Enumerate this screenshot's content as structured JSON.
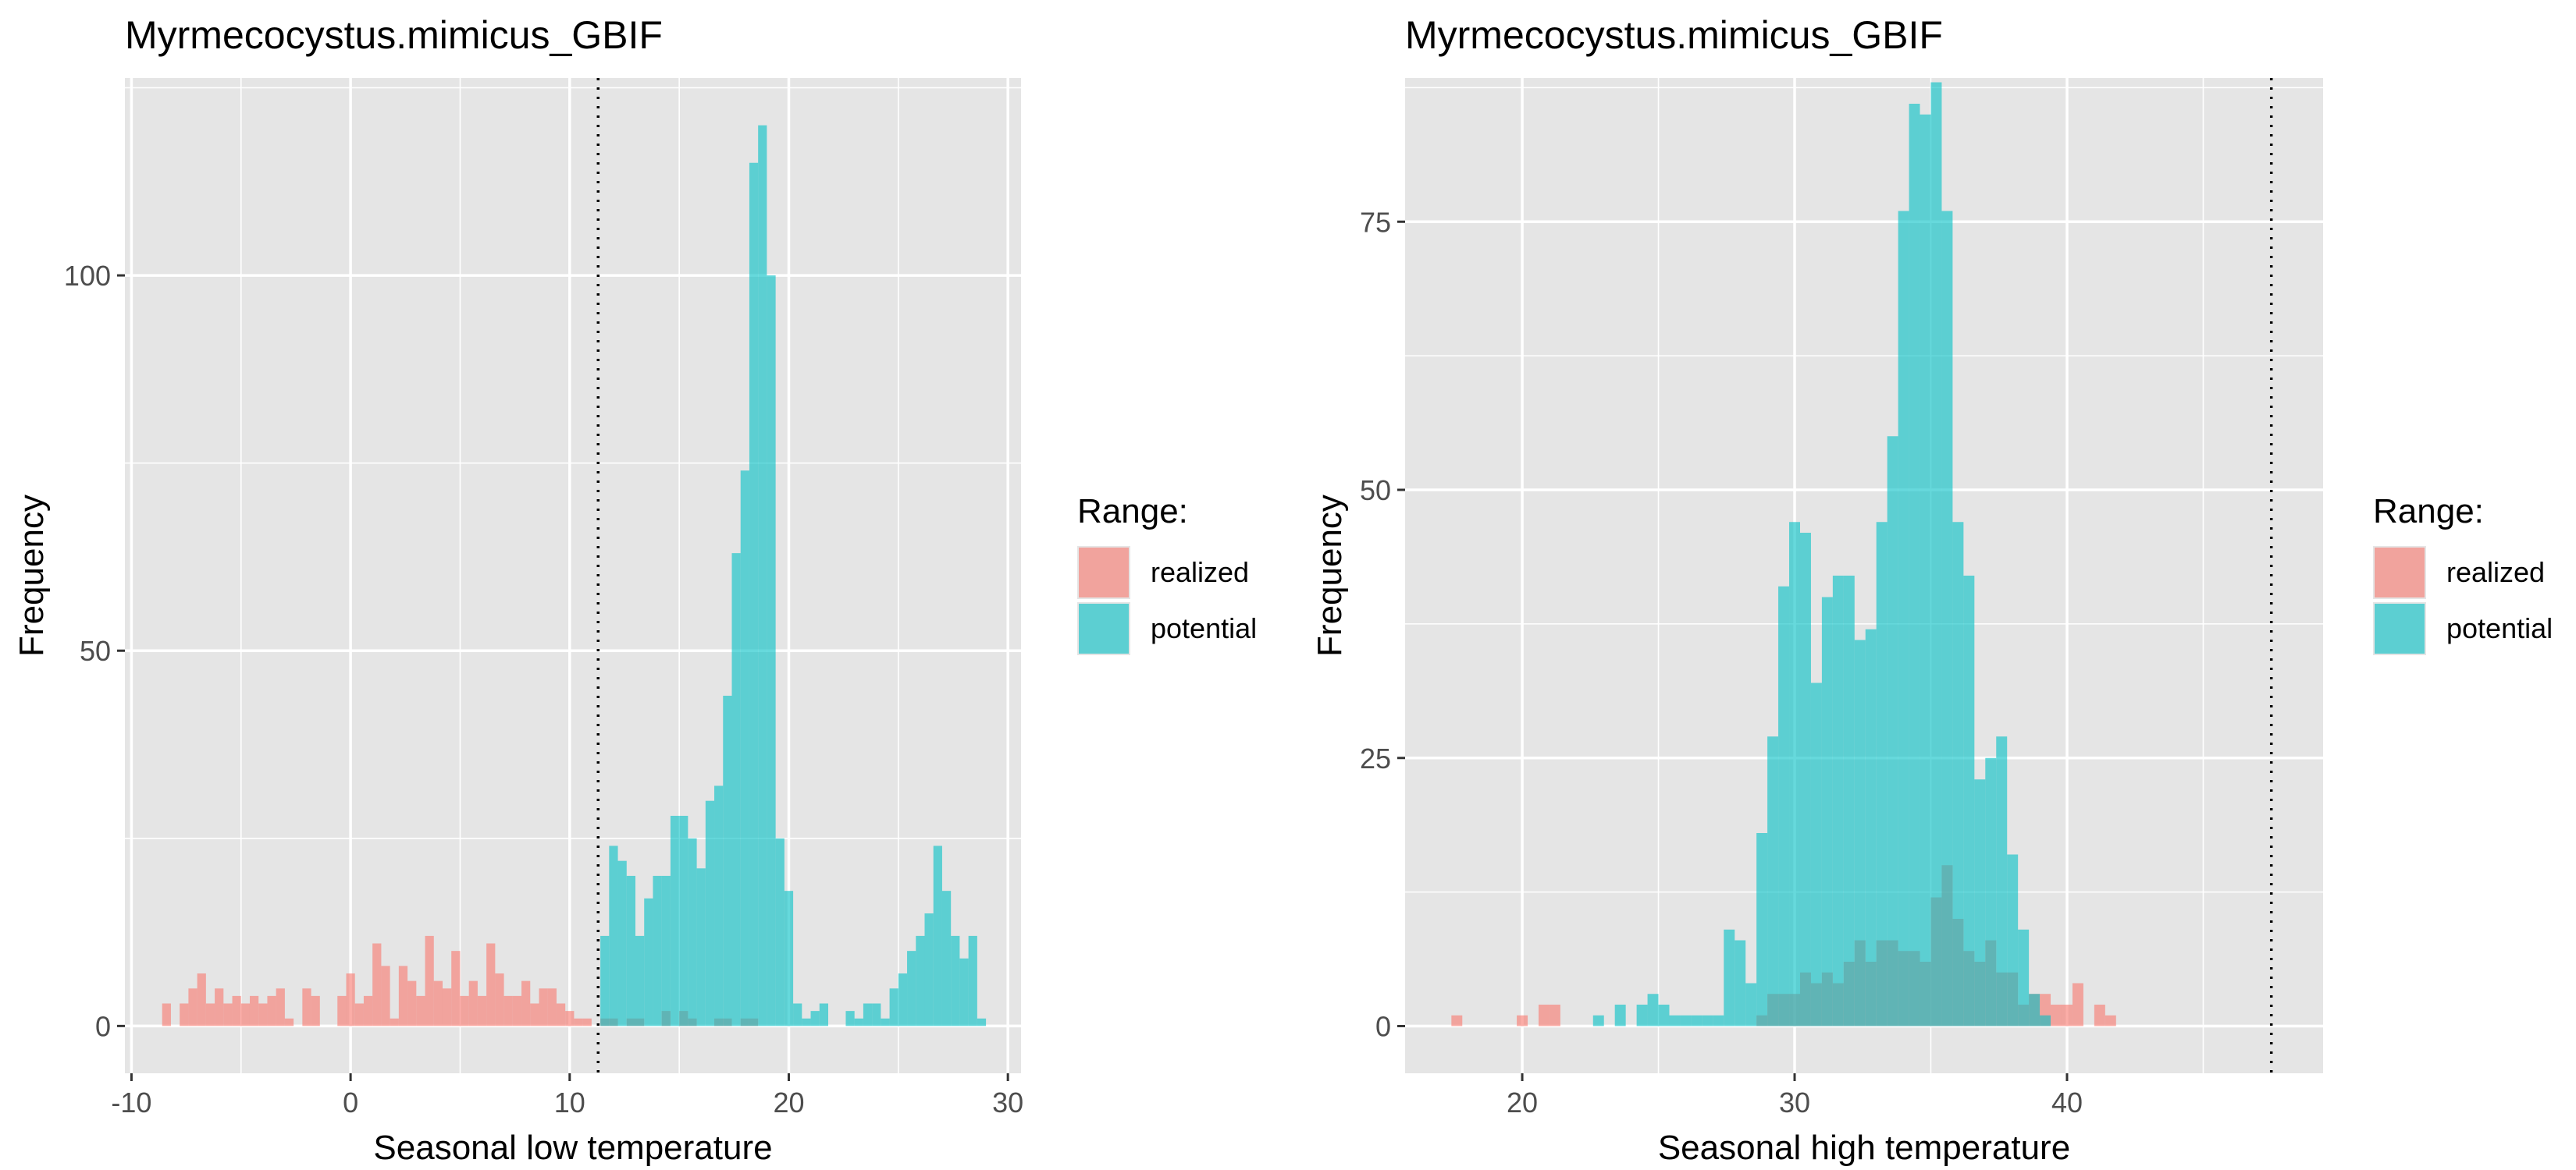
{
  "colors": {
    "realized": "#F8766D",
    "potential": "#00BFC4",
    "panel_bg": "#E5E5E5",
    "grid": "#FFFFFF",
    "text": "#000000",
    "tick_text": "#4D4D4D"
  },
  "chart_data": [
    {
      "type": "histogram",
      "title": "Myrmecocystus.mimicus_GBIF",
      "xlabel": "Seasonal low temperature",
      "ylabel": "Frequency",
      "xlim": [
        -10.3,
        30.6
      ],
      "ylim": [
        -6.3,
        126.3
      ],
      "x_ticks": [
        -10,
        0,
        10,
        20,
        30
      ],
      "x_tick_labels": [
        "-10",
        "0",
        "10",
        "20",
        "30"
      ],
      "y_ticks": [
        0,
        50,
        100
      ],
      "y_tick_labels": [
        "0",
        "50",
        "100"
      ],
      "threshold_x": 11.3,
      "legend": {
        "title": "Range:",
        "position": "right",
        "entries": [
          "realized",
          "potential"
        ]
      },
      "bin_width": 0.4,
      "series": [
        {
          "name": "realized",
          "bins": [
            {
              "x": -8.6,
              "count": 3
            },
            {
              "x": -7.8,
              "count": 3
            },
            {
              "x": -7.4,
              "count": 5
            },
            {
              "x": -7.0,
              "count": 7
            },
            {
              "x": -6.6,
              "count": 3
            },
            {
              "x": -6.2,
              "count": 5
            },
            {
              "x": -5.8,
              "count": 3
            },
            {
              "x": -5.4,
              "count": 4
            },
            {
              "x": -5.0,
              "count": 3
            },
            {
              "x": -4.6,
              "count": 4
            },
            {
              "x": -4.2,
              "count": 3
            },
            {
              "x": -3.8,
              "count": 4
            },
            {
              "x": -3.4,
              "count": 5
            },
            {
              "x": -3.0,
              "count": 1
            },
            {
              "x": -2.2,
              "count": 5
            },
            {
              "x": -1.8,
              "count": 4
            },
            {
              "x": -0.6,
              "count": 4
            },
            {
              "x": -0.2,
              "count": 7
            },
            {
              "x": 0.2,
              "count": 3
            },
            {
              "x": 0.6,
              "count": 4
            },
            {
              "x": 1.0,
              "count": 11
            },
            {
              "x": 1.4,
              "count": 8
            },
            {
              "x": 1.8,
              "count": 1
            },
            {
              "x": 2.2,
              "count": 8
            },
            {
              "x": 2.6,
              "count": 6
            },
            {
              "x": 3.0,
              "count": 4
            },
            {
              "x": 3.4,
              "count": 12
            },
            {
              "x": 3.8,
              "count": 6
            },
            {
              "x": 4.2,
              "count": 5
            },
            {
              "x": 4.6,
              "count": 10
            },
            {
              "x": 5.0,
              "count": 4
            },
            {
              "x": 5.4,
              "count": 6
            },
            {
              "x": 5.8,
              "count": 4
            },
            {
              "x": 6.2,
              "count": 11
            },
            {
              "x": 6.6,
              "count": 7
            },
            {
              "x": 7.0,
              "count": 4
            },
            {
              "x": 7.4,
              "count": 4
            },
            {
              "x": 7.8,
              "count": 6
            },
            {
              "x": 8.2,
              "count": 3
            },
            {
              "x": 8.6,
              "count": 5
            },
            {
              "x": 9.0,
              "count": 5
            },
            {
              "x": 9.4,
              "count": 3
            },
            {
              "x": 9.8,
              "count": 2
            },
            {
              "x": 10.2,
              "count": 1
            },
            {
              "x": 10.6,
              "count": 1
            },
            {
              "x": 11.4,
              "count": 1
            },
            {
              "x": 11.8,
              "count": 1
            },
            {
              "x": 12.6,
              "count": 1
            },
            {
              "x": 13.0,
              "count": 1
            },
            {
              "x": 14.2,
              "count": 2
            },
            {
              "x": 15.0,
              "count": 2
            },
            {
              "x": 15.4,
              "count": 1
            },
            {
              "x": 16.6,
              "count": 1
            },
            {
              "x": 17.0,
              "count": 1
            },
            {
              "x": 17.8,
              "count": 1
            },
            {
              "x": 18.2,
              "count": 1
            }
          ]
        },
        {
          "name": "potential",
          "bins": [
            {
              "x": 11.4,
              "count": 12
            },
            {
              "x": 11.8,
              "count": 24
            },
            {
              "x": 12.2,
              "count": 22
            },
            {
              "x": 12.6,
              "count": 20
            },
            {
              "x": 13.0,
              "count": 12
            },
            {
              "x": 13.4,
              "count": 17
            },
            {
              "x": 13.8,
              "count": 20
            },
            {
              "x": 14.2,
              "count": 20
            },
            {
              "x": 14.6,
              "count": 28
            },
            {
              "x": 15.0,
              "count": 28
            },
            {
              "x": 15.4,
              "count": 25
            },
            {
              "x": 15.8,
              "count": 21
            },
            {
              "x": 16.2,
              "count": 30
            },
            {
              "x": 16.6,
              "count": 32
            },
            {
              "x": 17.0,
              "count": 44
            },
            {
              "x": 17.4,
              "count": 63
            },
            {
              "x": 17.8,
              "count": 74
            },
            {
              "x": 18.2,
              "count": 115
            },
            {
              "x": 18.6,
              "count": 120
            },
            {
              "x": 19.0,
              "count": 100
            },
            {
              "x": 19.4,
              "count": 25
            },
            {
              "x": 19.8,
              "count": 18
            },
            {
              "x": 20.2,
              "count": 3
            },
            {
              "x": 20.6,
              "count": 1
            },
            {
              "x": 21.0,
              "count": 2
            },
            {
              "x": 21.4,
              "count": 3
            },
            {
              "x": 22.6,
              "count": 2
            },
            {
              "x": 23.0,
              "count": 1
            },
            {
              "x": 23.4,
              "count": 3
            },
            {
              "x": 23.8,
              "count": 3
            },
            {
              "x": 24.2,
              "count": 1
            },
            {
              "x": 24.6,
              "count": 5
            },
            {
              "x": 25.0,
              "count": 7
            },
            {
              "x": 25.4,
              "count": 10
            },
            {
              "x": 25.8,
              "count": 12
            },
            {
              "x": 26.2,
              "count": 15
            },
            {
              "x": 26.6,
              "count": 24
            },
            {
              "x": 27.0,
              "count": 18
            },
            {
              "x": 27.4,
              "count": 12
            },
            {
              "x": 27.8,
              "count": 9
            },
            {
              "x": 28.2,
              "count": 12
            },
            {
              "x": 28.6,
              "count": 1
            }
          ]
        }
      ]
    },
    {
      "type": "histogram",
      "title": "Myrmecocystus.mimicus_GBIF",
      "xlabel": "Seasonal high temperature",
      "ylabel": "Frequency",
      "xlim": [
        15.7,
        49.4
      ],
      "ylim": [
        -4.4,
        88.4
      ],
      "x_ticks": [
        20,
        30,
        40
      ],
      "x_tick_labels": [
        "20",
        "30",
        "40"
      ],
      "y_ticks": [
        0,
        25,
        50,
        75
      ],
      "y_tick_labels": [
        "0",
        "25",
        "50",
        "75"
      ],
      "threshold_x": 47.5,
      "legend": {
        "title": "Range:",
        "position": "right",
        "entries": [
          "realized",
          "potential"
        ]
      },
      "bin_width": 0.4,
      "series": [
        {
          "name": "realized",
          "bins": [
            {
              "x": 17.4,
              "count": 1
            },
            {
              "x": 19.8,
              "count": 1
            },
            {
              "x": 20.6,
              "count": 2
            },
            {
              "x": 21.0,
              "count": 2
            },
            {
              "x": 28.6,
              "count": 1
            },
            {
              "x": 29.0,
              "count": 3
            },
            {
              "x": 29.4,
              "count": 3
            },
            {
              "x": 29.8,
              "count": 3
            },
            {
              "x": 30.2,
              "count": 5
            },
            {
              "x": 30.6,
              "count": 4
            },
            {
              "x": 31.0,
              "count": 5
            },
            {
              "x": 31.4,
              "count": 4
            },
            {
              "x": 31.8,
              "count": 6
            },
            {
              "x": 32.2,
              "count": 8
            },
            {
              "x": 32.6,
              "count": 6
            },
            {
              "x": 33.0,
              "count": 8
            },
            {
              "x": 33.4,
              "count": 8
            },
            {
              "x": 33.8,
              "count": 7
            },
            {
              "x": 34.2,
              "count": 7
            },
            {
              "x": 34.6,
              "count": 6
            },
            {
              "x": 35.0,
              "count": 12
            },
            {
              "x": 35.4,
              "count": 15
            },
            {
              "x": 35.8,
              "count": 10
            },
            {
              "x": 36.2,
              "count": 7
            },
            {
              "x": 36.6,
              "count": 6
            },
            {
              "x": 37.0,
              "count": 8
            },
            {
              "x": 37.4,
              "count": 5
            },
            {
              "x": 37.8,
              "count": 5
            },
            {
              "x": 38.2,
              "count": 2
            },
            {
              "x": 38.6,
              "count": 3
            },
            {
              "x": 39.0,
              "count": 3
            },
            {
              "x": 39.4,
              "count": 2
            },
            {
              "x": 39.8,
              "count": 2
            },
            {
              "x": 40.2,
              "count": 4
            },
            {
              "x": 41.0,
              "count": 2
            },
            {
              "x": 41.4,
              "count": 1
            }
          ]
        },
        {
          "name": "potential",
          "bins": [
            {
              "x": 22.6,
              "count": 1
            },
            {
              "x": 23.4,
              "count": 2
            },
            {
              "x": 24.2,
              "count": 2
            },
            {
              "x": 24.6,
              "count": 3
            },
            {
              "x": 25.0,
              "count": 2
            },
            {
              "x": 25.4,
              "count": 1
            },
            {
              "x": 25.8,
              "count": 1
            },
            {
              "x": 26.2,
              "count": 1
            },
            {
              "x": 26.6,
              "count": 1
            },
            {
              "x": 27.0,
              "count": 1
            },
            {
              "x": 27.4,
              "count": 9
            },
            {
              "x": 27.8,
              "count": 8
            },
            {
              "x": 28.2,
              "count": 4
            },
            {
              "x": 28.6,
              "count": 18
            },
            {
              "x": 29.0,
              "count": 27
            },
            {
              "x": 29.4,
              "count": 41
            },
            {
              "x": 29.8,
              "count": 47
            },
            {
              "x": 30.2,
              "count": 46
            },
            {
              "x": 30.6,
              "count": 32
            },
            {
              "x": 31.0,
              "count": 40
            },
            {
              "x": 31.4,
              "count": 42
            },
            {
              "x": 31.8,
              "count": 42
            },
            {
              "x": 32.2,
              "count": 36
            },
            {
              "x": 32.6,
              "count": 37
            },
            {
              "x": 33.0,
              "count": 47
            },
            {
              "x": 33.4,
              "count": 55
            },
            {
              "x": 33.8,
              "count": 76
            },
            {
              "x": 34.2,
              "count": 86
            },
            {
              "x": 34.6,
              "count": 85
            },
            {
              "x": 35.0,
              "count": 88
            },
            {
              "x": 35.4,
              "count": 76
            },
            {
              "x": 35.8,
              "count": 47
            },
            {
              "x": 36.2,
              "count": 42
            },
            {
              "x": 36.6,
              "count": 23
            },
            {
              "x": 37.0,
              "count": 25
            },
            {
              "x": 37.4,
              "count": 27
            },
            {
              "x": 37.8,
              "count": 16
            },
            {
              "x": 38.2,
              "count": 9
            },
            {
              "x": 38.6,
              "count": 3
            },
            {
              "x": 39.0,
              "count": 1
            }
          ]
        }
      ]
    }
  ]
}
